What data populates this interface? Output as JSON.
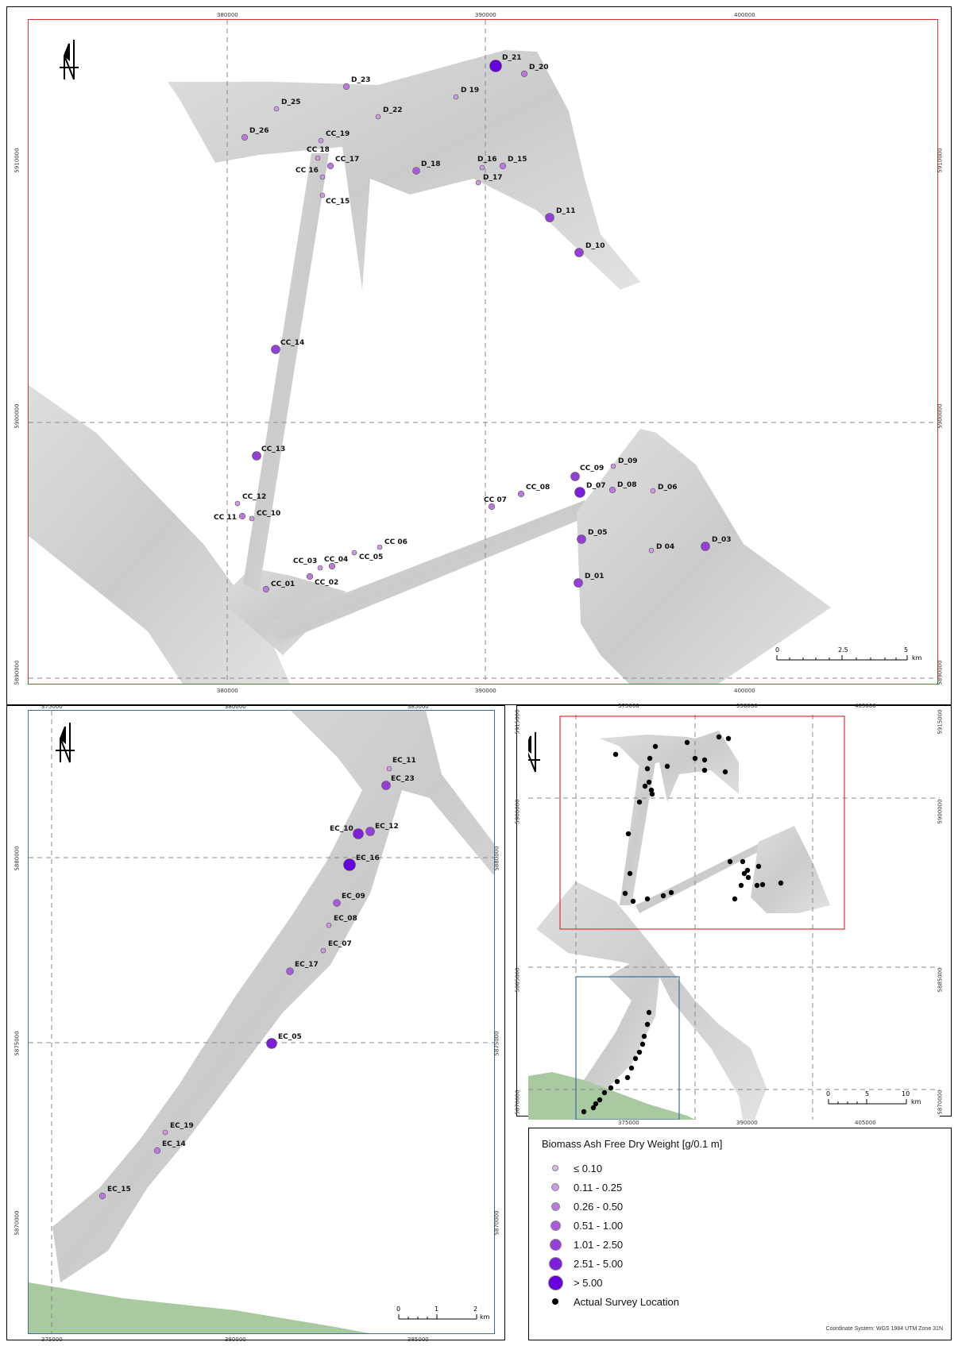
{
  "maps": {
    "main": {
      "top_ticks": [
        "380000",
        "390000",
        "400000"
      ],
      "bottom_ticks": [
        "380000",
        "390000",
        "400000"
      ],
      "left_ticks": [
        "5910000",
        "5900000",
        "5890000"
      ],
      "right_ticks": [
        "5910000",
        "5900000",
        "5890000"
      ],
      "scale_labels": [
        "0",
        "2.5",
        "5"
      ],
      "scale_unit": "km",
      "frame_color": "#d9342b"
    },
    "south": {
      "top_ticks": [
        "375000",
        "380000",
        "385000"
      ],
      "bottom_ticks": [
        "375000",
        "380000",
        "385000"
      ],
      "left_ticks": [
        "5880000",
        "5875000",
        "5870000"
      ],
      "right_ticks": [
        "5880000",
        "5875000",
        "5870000"
      ],
      "scale_labels": [
        "0",
        "1",
        "2"
      ],
      "scale_unit": "km",
      "frame_color": "#3a6ea5"
    },
    "overview": {
      "top_ticks": [
        "375000",
        "390000",
        "405000"
      ],
      "bottom_ticks": [
        "375000",
        "390000",
        "405000"
      ],
      "left_ticks": [
        "5915000",
        "5900000",
        "5885000",
        "5870000"
      ],
      "right_ticks": [
        "5915000",
        "5900000",
        "5885000",
        "5870000"
      ],
      "scale_labels": [
        "0",
        "5",
        "10"
      ],
      "scale_unit": "km"
    }
  },
  "stations_main": [
    {
      "name": "D_21",
      "c": 6
    },
    {
      "name": "D_20",
      "c": 2
    },
    {
      "name": "D_23",
      "c": 2
    },
    {
      "name": "D 19",
      "c": 1
    },
    {
      "name": "D_25",
      "c": 1
    },
    {
      "name": "D_22",
      "c": 1
    },
    {
      "name": "D_26",
      "c": 2
    },
    {
      "name": "CC_19",
      "c": 1
    },
    {
      "name": "CC 18",
      "c": 1
    },
    {
      "name": "CC_17",
      "c": 2
    },
    {
      "name": "CC 16",
      "c": 1
    },
    {
      "name": "CC_15",
      "c": 1
    },
    {
      "name": "D_18",
      "c": 3
    },
    {
      "name": "D_16",
      "c": 1
    },
    {
      "name": "D_15",
      "c": 2
    },
    {
      "name": "D_17",
      "c": 1
    },
    {
      "name": "D_11",
      "c": 4
    },
    {
      "name": "D_10",
      "c": 4
    },
    {
      "name": "CC_14",
      "c": 4
    },
    {
      "name": "CC_13",
      "c": 4
    },
    {
      "name": "CC_12",
      "c": 1
    },
    {
      "name": "CC 11",
      "c": 2
    },
    {
      "name": "CC_10",
      "c": 1
    },
    {
      "name": "CC_09",
      "c": 4
    },
    {
      "name": "D_09",
      "c": 1
    },
    {
      "name": "D_07",
      "c": 5
    },
    {
      "name": "D_08",
      "c": 2
    },
    {
      "name": "D_06",
      "c": 1
    },
    {
      "name": "CC 07",
      "c": 2
    },
    {
      "name": "CC_08",
      "c": 2
    },
    {
      "name": "CC 06",
      "c": 1
    },
    {
      "name": "CC_05",
      "c": 1
    },
    {
      "name": "CC_04",
      "c": 2
    },
    {
      "name": "CC_03",
      "c": 1
    },
    {
      "name": "CC_02",
      "c": 2
    },
    {
      "name": "CC_01",
      "c": 2
    },
    {
      "name": "D_05",
      "c": 4
    },
    {
      "name": "D 04",
      "c": 1
    },
    {
      "name": "D_03",
      "c": 4
    },
    {
      "name": "D_01",
      "c": 4
    }
  ],
  "stations_south": [
    {
      "name": "EC_11",
      "c": 1
    },
    {
      "name": "EC_23",
      "c": 4
    },
    {
      "name": "EC_10",
      "c": 5
    },
    {
      "name": "EC_12",
      "c": 4
    },
    {
      "name": "EC_16",
      "c": 6
    },
    {
      "name": "EC_09",
      "c": 3
    },
    {
      "name": "EC_08",
      "c": 1
    },
    {
      "name": "EC_07",
      "c": 1
    },
    {
      "name": "EC_17",
      "c": 3
    },
    {
      "name": "EC_05",
      "c": 5
    },
    {
      "name": "EC_19",
      "c": 1
    },
    {
      "name": "EC_14",
      "c": 2
    },
    {
      "name": "EC_15",
      "c": 2
    }
  ],
  "legend": {
    "title": "Biomass Ash Free Dry Weight [g/0.1 m]",
    "classes": [
      {
        "label": "≤ 0.10",
        "color": "#e0b8ee"
      },
      {
        "label": "0.11 - 0.25",
        "color": "#cf98e6"
      },
      {
        "label": "0.26 - 0.50",
        "color": "#bd78e0"
      },
      {
        "label": "0.51 - 1.00",
        "color": "#a95adb"
      },
      {
        "label": "1.01 - 2.50",
        "color": "#963fd8"
      },
      {
        "label": "2.51 - 5.00",
        "color": "#7c1fd6"
      },
      {
        "label": "> 5.00",
        "color": "#6600dd"
      }
    ],
    "survey_label": "Actual Survey Location",
    "survey_color": "#000000"
  },
  "coord_system": "Coordinate System: WGS 1984 UTM Zone 31N",
  "colors": {
    "shore": "#a9c9a0",
    "swath": "#d2d2d2"
  }
}
